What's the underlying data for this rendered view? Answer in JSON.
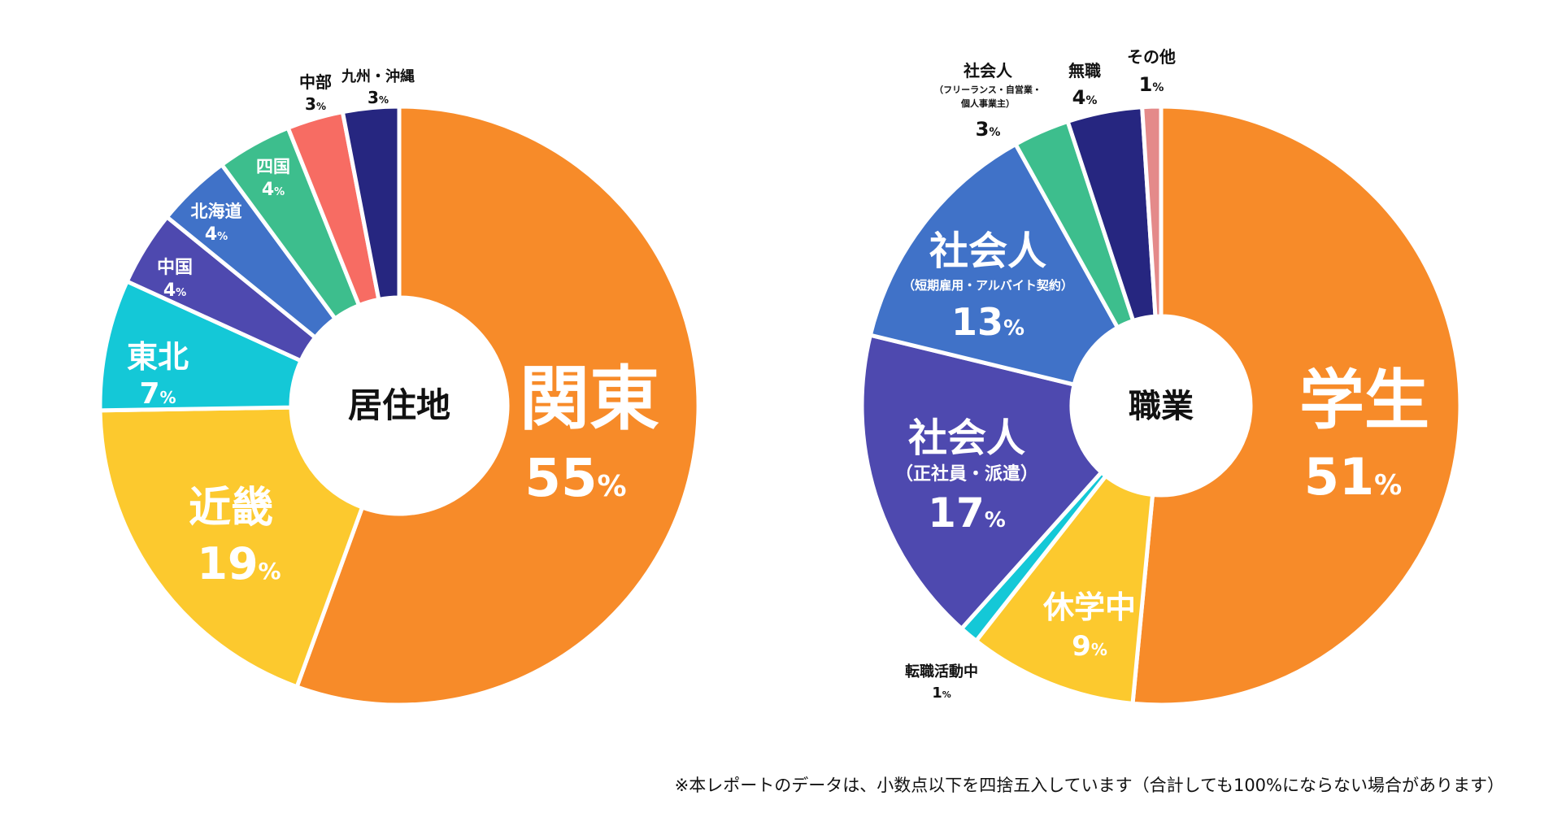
{
  "chart_data": [
    {
      "type": "pie",
      "style": "donut",
      "center_label": "居住地",
      "categories": [
        "関東",
        "近畿",
        "東北",
        "中国",
        "北海道",
        "四国",
        "中部",
        "九州・沖縄"
      ],
      "values": [
        55,
        19,
        7,
        4,
        4,
        4,
        3,
        3
      ],
      "unit": "%",
      "colors": [
        "#F78B29",
        "#FCC92E",
        "#14C8D7",
        "#4E49AF",
        "#4072C8",
        "#3DBE8D",
        "#F76C63",
        "#262680"
      ]
    },
    {
      "type": "pie",
      "style": "donut",
      "center_label": "職業",
      "categories": [
        "学生",
        "休学中",
        "転職活動中",
        "社会人（正社員・派遣）",
        "社会人（短期雇用・アルバイト契約）",
        "社会人（フリーランス・自営業・個人事業主）",
        "無職",
        "その他"
      ],
      "values": [
        51,
        9,
        1,
        17,
        13,
        3,
        4,
        1
      ],
      "unit": "%",
      "colors": [
        "#F78B29",
        "#FCC92E",
        "#14C8D7",
        "#4E49AF",
        "#4072C8",
        "#3DBE8D",
        "#262680",
        "#E48A8A"
      ]
    }
  ],
  "labels": {
    "residence": [
      {
        "name": "関東",
        "value": "55",
        "unit": "%"
      },
      {
        "name": "近畿",
        "value": "19",
        "unit": "%"
      },
      {
        "name": "東北",
        "value": "7",
        "unit": "%"
      },
      {
        "name": "中国",
        "value": "4",
        "unit": "%"
      },
      {
        "name": "北海道",
        "value": "4",
        "unit": "%"
      },
      {
        "name": "四国",
        "value": "4",
        "unit": "%"
      },
      {
        "name": "中部",
        "value": "3",
        "unit": "%"
      },
      {
        "name": "九州・沖縄",
        "value": "3",
        "unit": "%"
      }
    ],
    "occupation": [
      {
        "name": "学生",
        "value": "51",
        "unit": "%"
      },
      {
        "name": "休学中",
        "value": "9",
        "unit": "%"
      },
      {
        "name": "転職活動中",
        "value": "1",
        "unit": "%"
      },
      {
        "name": "社会人",
        "sub": "（正社員・派遣）",
        "value": "17",
        "unit": "%"
      },
      {
        "name": "社会人",
        "sub": "（短期雇用・アルバイト契約）",
        "value": "13",
        "unit": "%"
      },
      {
        "name": "社会人",
        "sub": "（フリーランス・自営業・",
        "sub2": "個人事業主）",
        "value": "3",
        "unit": "%"
      },
      {
        "name": "無職",
        "value": "4",
        "unit": "%"
      },
      {
        "name": "その他",
        "value": "1",
        "unit": "%"
      }
    ]
  },
  "footnote": "※本レポートのデータは、小数点以下を四捨五入しています（合計しても100%にならない場合があります）"
}
